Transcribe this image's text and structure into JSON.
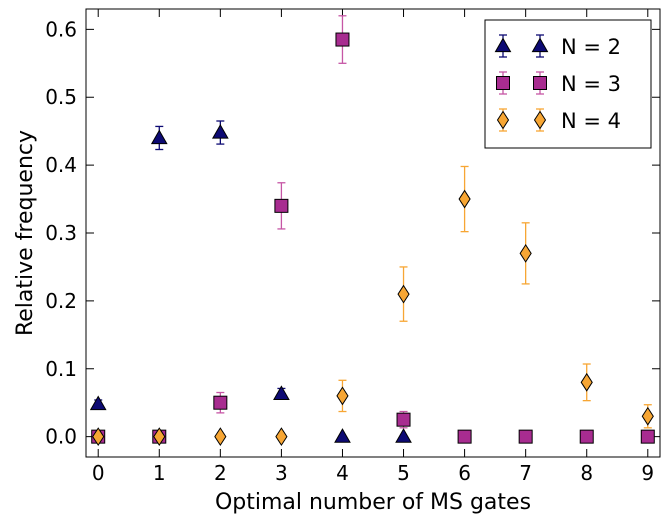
{
  "chart_data": {
    "type": "scatter",
    "title": "",
    "xlabel": "Optimal number of MS gates",
    "ylabel": "Relative frequency",
    "xlim": [
      -0.2,
      9.2
    ],
    "ylim": [
      -0.03,
      0.63
    ],
    "xticks": [
      0,
      1,
      2,
      3,
      4,
      5,
      6,
      7,
      8,
      9
    ],
    "yticks": [
      0.0,
      0.1,
      0.2,
      0.3,
      0.4,
      0.5,
      0.6
    ],
    "ytick_labels": [
      "0.0",
      "0.1",
      "0.2",
      "0.3",
      "0.4",
      "0.5",
      "0.6"
    ],
    "grid": false,
    "legend_position": "top-right",
    "series": [
      {
        "name": "N = 2",
        "marker": "triangle",
        "color": "#0d0a73",
        "errcolor": "#0d0a73",
        "x": [
          0,
          1,
          2,
          3,
          4,
          5
        ],
        "y": [
          0.048,
          0.44,
          0.448,
          0.063,
          0.0,
          0.0
        ],
        "err": [
          0.006,
          0.017,
          0.017,
          0.008,
          0.0,
          0.0
        ]
      },
      {
        "name": "N = 3",
        "marker": "square",
        "color": "#a82c90",
        "errcolor": "#c656a5",
        "x": [
          0,
          1,
          2,
          3,
          4,
          5,
          6,
          7,
          8,
          9
        ],
        "y": [
          0.0,
          0.0,
          0.05,
          0.34,
          0.585,
          0.025,
          0.0,
          0.0,
          0.0,
          0.0
        ],
        "err": [
          0.0,
          0.0,
          0.015,
          0.034,
          0.035,
          0.012,
          0.0,
          0.0,
          0.0,
          0.0
        ]
      },
      {
        "name": "N = 4",
        "marker": "diamond",
        "color": "#f7a634",
        "errcolor": "#f7a634",
        "x": [
          0,
          1,
          2,
          3,
          4,
          5,
          6,
          7,
          8,
          9
        ],
        "y": [
          0.0,
          0.0,
          0.0,
          0.0,
          0.06,
          0.21,
          0.35,
          0.27,
          0.08,
          0.03
        ],
        "err": [
          0.0,
          0.0,
          0.0,
          0.0,
          0.023,
          0.04,
          0.048,
          0.045,
          0.027,
          0.017
        ]
      }
    ]
  }
}
